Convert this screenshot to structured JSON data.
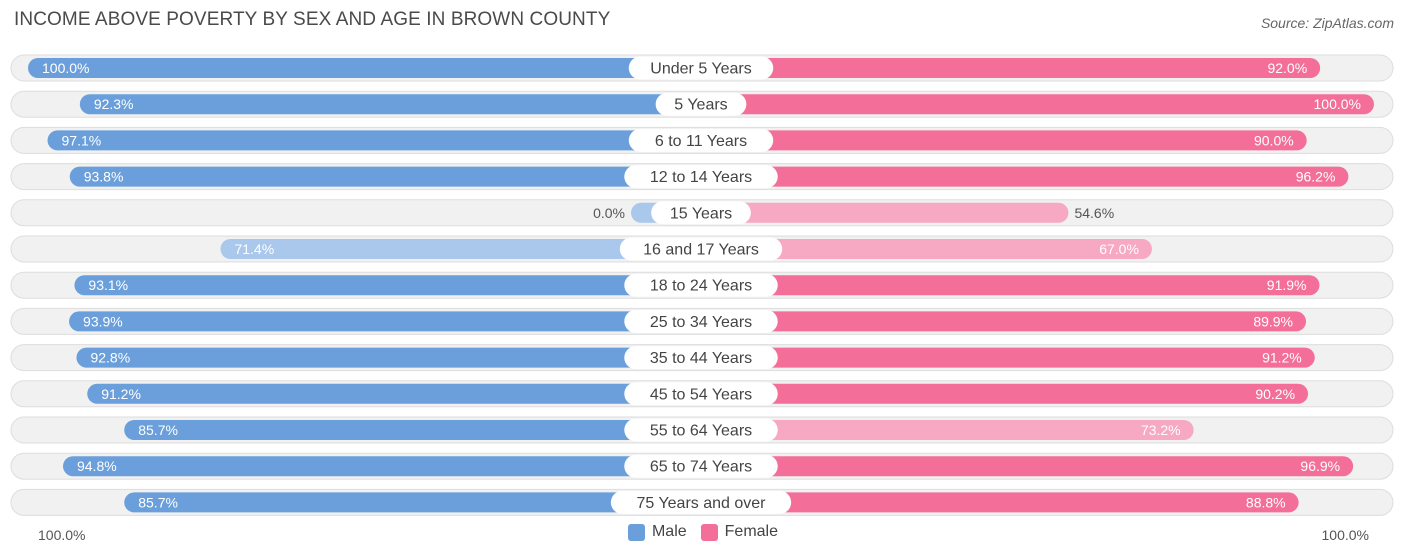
{
  "title": "INCOME ABOVE POVERTY BY SEX AND AGE IN BROWN COUNTY",
  "source": "Source: ZipAtlas.com",
  "colors": {
    "male": "#6a9fdb",
    "male_light": "#a9c8ec",
    "female": "#f36f99",
    "female_light": "#f7a8c3"
  },
  "legend": {
    "male_label": "Male",
    "female_label": "Female"
  },
  "axis": {
    "left_label": "100.0%",
    "right_label": "100.0%"
  },
  "chart_data": {
    "type": "bar",
    "orientation": "diverging-horizontal",
    "title": "INCOME ABOVE POVERTY BY SEX AND AGE IN BROWN COUNTY",
    "categories": [
      "Under 5 Years",
      "5 Years",
      "6 to 11 Years",
      "12 to 14 Years",
      "15 Years",
      "16 and 17 Years",
      "18 to 24 Years",
      "25 to 34 Years",
      "35 to 44 Years",
      "45 to 54 Years",
      "55 to 64 Years",
      "65 to 74 Years",
      "75 Years and over"
    ],
    "series": [
      {
        "name": "Male",
        "values": [
          100.0,
          92.3,
          97.1,
          93.8,
          0.0,
          71.4,
          93.1,
          93.9,
          92.8,
          91.2,
          85.7,
          94.8,
          85.7
        ],
        "labels": [
          "100.0%",
          "92.3%",
          "97.1%",
          "93.8%",
          "0.0%",
          "71.4%",
          "93.1%",
          "93.9%",
          "92.8%",
          "91.2%",
          "85.7%",
          "94.8%",
          "85.7%"
        ]
      },
      {
        "name": "Female",
        "values": [
          92.0,
          100.0,
          90.0,
          96.2,
          54.6,
          67.0,
          91.9,
          89.9,
          91.2,
          90.2,
          73.2,
          96.9,
          88.8
        ],
        "labels": [
          "92.0%",
          "100.0%",
          "90.0%",
          "96.2%",
          "54.6%",
          "67.0%",
          "91.9%",
          "89.9%",
          "91.2%",
          "90.2%",
          "73.2%",
          "96.9%",
          "88.8%"
        ]
      }
    ],
    "xlim": [
      0,
      100
    ],
    "unit": "%",
    "legend_position": "bottom-center"
  }
}
